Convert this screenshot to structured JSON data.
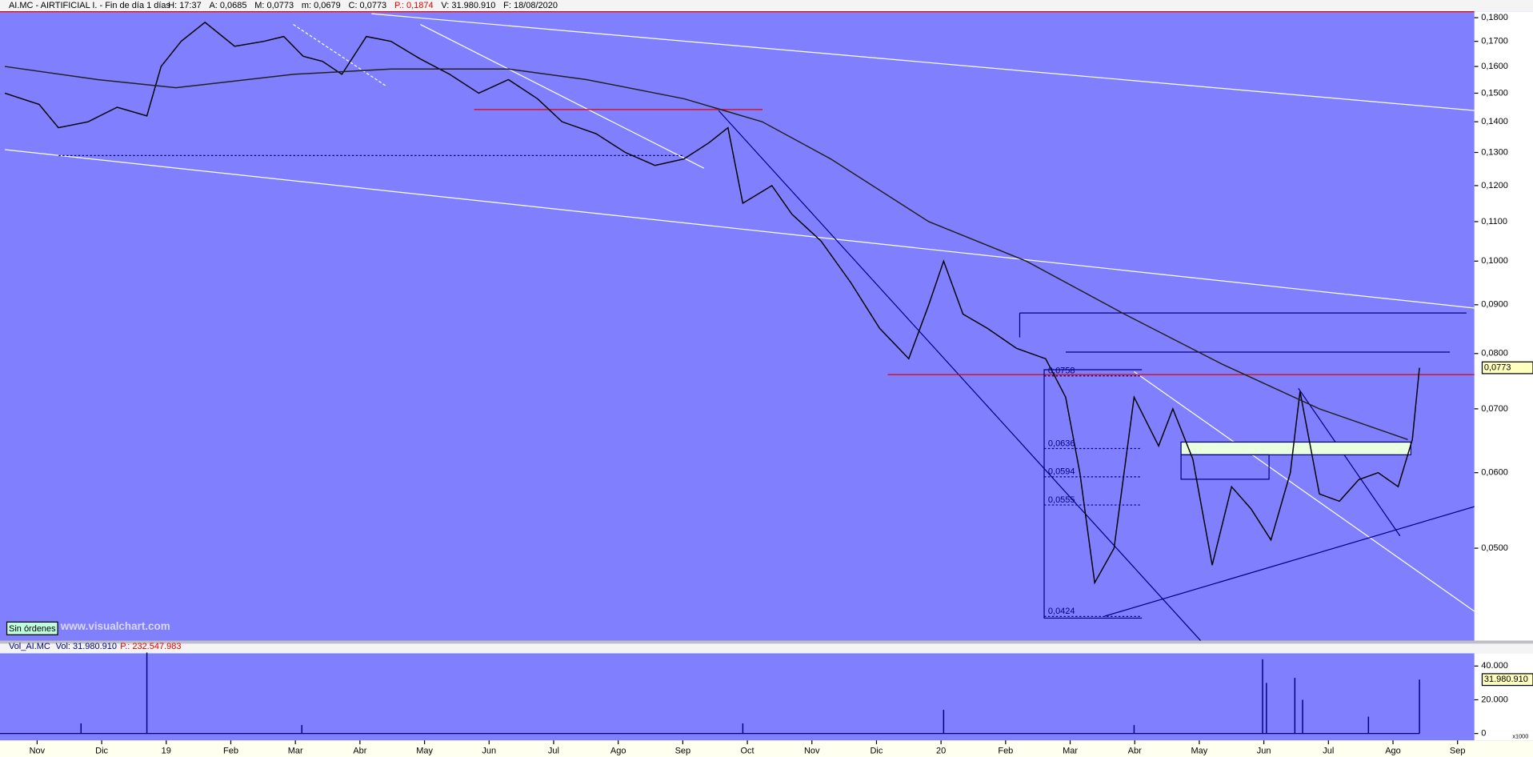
{
  "header": {
    "stats": [
      {
        "text": "H: 17:37",
        "color": "#000000"
      },
      {
        "text": "A: 0,0685",
        "color": "#000000"
      },
      {
        "text": "M: 0,0773",
        "color": "#000000"
      },
      {
        "text": "m: 0,0679",
        "color": "#000000"
      },
      {
        "text": "C: 0,0773",
        "color": "#000000"
      },
      {
        "text": "P.: 0,1874",
        "color": "#e00000"
      },
      {
        "text": "V: 31.980.910",
        "color": "#000000"
      },
      {
        "text": "F: 18/08/2020",
        "color": "#000000"
      }
    ],
    "status": "Sin órdenes",
    "watermark": "www.visualchart.com"
  },
  "chart_data": [
    {
      "type": "line",
      "title": "AI.MC - AIRTIFICIAL I. - Fin de día 1 días",
      "log_scale": true,
      "ylim": [
        0.04,
        0.1826
      ],
      "xlim": [
        0.425,
        23.26
      ],
      "yticks": [
        {
          "value": 0.05,
          "label": "0,0500"
        },
        {
          "value": 0.06,
          "label": "0,0600"
        },
        {
          "value": 0.07,
          "label": "0,0700"
        },
        {
          "value": 0.08,
          "label": "0,0800"
        },
        {
          "value": 0.09,
          "label": "0,0900"
        },
        {
          "value": 0.1,
          "label": "0,1000"
        },
        {
          "value": 0.11,
          "label": "0,1100"
        },
        {
          "value": 0.12,
          "label": "0,1200"
        },
        {
          "value": 0.13,
          "label": "0,1300"
        },
        {
          "value": 0.14,
          "label": "0,1400"
        },
        {
          "value": 0.15,
          "label": "0,1500"
        },
        {
          "value": 0.16,
          "label": "0,1600"
        },
        {
          "value": 0.17,
          "label": "0,1700"
        },
        {
          "value": 0.18,
          "label": "0,1800"
        }
      ],
      "xticks": [
        {
          "value": 1,
          "label": "Nov"
        },
        {
          "value": 2,
          "label": "Dic"
        },
        {
          "value": 3,
          "label": "19"
        },
        {
          "value": 4,
          "label": "Feb"
        },
        {
          "value": 5,
          "label": "Mar"
        },
        {
          "value": 6,
          "label": "Abr"
        },
        {
          "value": 7,
          "label": "May"
        },
        {
          "value": 8,
          "label": "Jun"
        },
        {
          "value": 9,
          "label": "Jul"
        },
        {
          "value": 10,
          "label": "Ago"
        },
        {
          "value": 11,
          "label": "Sep"
        },
        {
          "value": 12,
          "label": "Oct"
        },
        {
          "value": 13,
          "label": "Nov"
        },
        {
          "value": 14,
          "label": "Dic"
        },
        {
          "value": 15,
          "label": "20"
        },
        {
          "value": 16,
          "label": "Feb"
        },
        {
          "value": 17,
          "label": "Mar"
        },
        {
          "value": 18,
          "label": "Abr"
        },
        {
          "value": 19,
          "label": "May"
        },
        {
          "value": 20,
          "label": "Jun"
        },
        {
          "value": 21,
          "label": "Jul"
        },
        {
          "value": 22,
          "label": "Ago"
        },
        {
          "value": 23,
          "label": "Sep"
        }
      ],
      "series": [
        {
          "color": "#000000",
          "x": [
            0.5,
            1.03,
            1.33,
            1.79,
            2.24,
            2.7,
            2.92,
            3.23,
            3.6,
            4.06,
            4.51,
            4.82,
            5.12,
            5.42,
            5.72,
            6.1,
            6.48,
            6.93,
            7.39,
            7.84,
            8.3,
            8.75,
            9.13,
            9.66,
            10.11,
            10.57,
            11.02,
            11.4,
            11.7,
            11.93,
            12.38,
            12.69,
            13.14,
            13.6,
            14.05,
            14.5,
            14.81,
            15.04,
            15.34,
            15.72,
            16.17,
            16.62,
            16.93,
            17.15,
            17.38,
            17.68,
            17.99,
            18.37,
            18.59,
            18.9,
            19.2,
            19.5,
            19.8,
            20.11,
            20.41,
            20.56,
            20.86,
            21.17,
            21.47,
            21.77,
            22.08,
            22.3,
            22.41
          ],
          "values": [
            0.15,
            0.146,
            0.138,
            0.14,
            0.145,
            0.142,
            0.16,
            0.17,
            0.178,
            0.168,
            0.17,
            0.172,
            0.164,
            0.162,
            0.157,
            0.172,
            0.17,
            0.163,
            0.157,
            0.15,
            0.155,
            0.148,
            0.14,
            0.136,
            0.13,
            0.126,
            0.128,
            0.133,
            0.138,
            0.115,
            0.12,
            0.112,
            0.105,
            0.095,
            0.085,
            0.079,
            0.09,
            0.1,
            0.088,
            0.085,
            0.081,
            0.079,
            0.072,
            0.06,
            0.046,
            0.05,
            0.072,
            0.064,
            0.07,
            0.062,
            0.048,
            0.058,
            0.055,
            0.051,
            0.06,
            0.073,
            0.057,
            0.056,
            0.059,
            0.06,
            0.058,
            0.065,
            0.0773
          ]
        },
        {
          "color": "#202020",
          "x": [
            0.5,
            1.94,
            3.15,
            4.97,
            6.48,
            8.3,
            9.51,
            11.02,
            12.23,
            13.29,
            14.81,
            16.32,
            17.84,
            19.35,
            20.86,
            22.23
          ],
          "values": [
            0.16,
            0.155,
            0.152,
            0.157,
            0.159,
            0.159,
            0.155,
            0.148,
            0.14,
            0.128,
            0.11,
            0.1,
            0.088,
            0.078,
            0.07,
            0.065
          ]
        }
      ],
      "last": {
        "value": 0.0773,
        "label": "0,0773"
      },
      "annotations": [
        {
          "value": 0.0758,
          "label": "0,0758"
        },
        {
          "value": 0.0636,
          "label": "0,0636"
        },
        {
          "value": 0.0594,
          "label": "0,0594"
        },
        {
          "value": 0.0555,
          "label": "0,0555"
        },
        {
          "value": 0.0424,
          "label": "0,0424"
        }
      ]
    },
    {
      "type": "bar",
      "title": "Vol_AI.MC",
      "subtitle": "Vol: 31.980.910",
      "note": "P.: 232.547.983",
      "color": "#000080",
      "xlim": [
        0.425,
        23.26
      ],
      "ylim": [
        -4058,
        47536
      ],
      "yticks": [
        0,
        {
          "value": 20000,
          "label": "20.000"
        },
        {
          "value": 40000,
          "label": "40.000"
        }
      ],
      "x": [
        1.68,
        2.7,
        5.1,
        11.93,
        15.04,
        17.99,
        19.98,
        20.04,
        20.48,
        20.6,
        21.62,
        22.41
      ],
      "values": [
        6000,
        48000,
        5000,
        6000,
        14000,
        5000,
        44000,
        30000,
        33000,
        20000,
        10000,
        31980.91
      ],
      "last": {
        "value": 31980.91,
        "label": "31.980.910"
      },
      "unit": "x1000"
    }
  ]
}
